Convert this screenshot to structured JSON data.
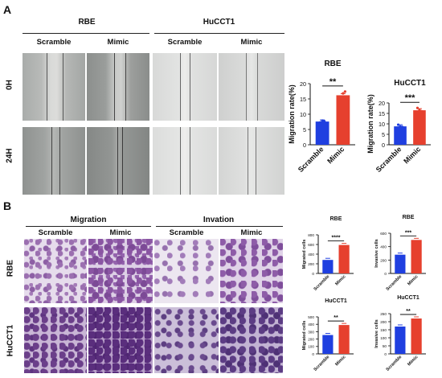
{
  "panelA": {
    "letter": "A",
    "groups": [
      "RBE",
      "HuCCT1"
    ],
    "cols": [
      "Scramble",
      "Mimic",
      "Scramble",
      "Mimic"
    ],
    "rows": [
      "0H",
      "24H"
    ]
  },
  "panelB": {
    "letter": "B",
    "groups": [
      "Migration",
      "Invation"
    ],
    "cols": [
      "Scramble",
      "Mimic",
      "Scramble",
      "Mimic"
    ],
    "rows": [
      "RBE",
      "HuCCT1"
    ]
  },
  "colors": {
    "scramble": "#1f3fe0",
    "mimic": "#e6402e"
  },
  "chart_data": [
    {
      "type": "bar",
      "title": "RBE",
      "categories": [
        "Scramble",
        "Mimic"
      ],
      "values": [
        7.6,
        16.2
      ],
      "points": [
        [
          7.3,
          7.9,
          7.7
        ],
        [
          15.2,
          16.8,
          17.4
        ]
      ],
      "ylabel": "Migration rate(%)",
      "ylim": [
        0,
        20
      ],
      "yticks": [
        "0",
        "5",
        "10",
        "15",
        "20"
      ],
      "significance": "**"
    },
    {
      "type": "bar",
      "title": "HuCCT1",
      "categories": [
        "Scramble",
        "Mimic"
      ],
      "values": [
        8.8,
        16.5
      ],
      "points": [
        [
          9.6,
          8.7,
          8.5
        ],
        [
          17.6,
          16.6,
          16.0
        ]
      ],
      "ylabel": "Migration rate(%)",
      "ylim": [
        0,
        20
      ],
      "yticks": [
        "0",
        "5",
        "10",
        "15",
        "20"
      ],
      "significance": "***"
    },
    {
      "type": "bar",
      "title": "RBE",
      "categories": [
        "Scramble",
        "Mimic"
      ],
      "values": [
        280,
        590
      ],
      "ylabel": "Migrated cells",
      "ylim": [
        0,
        800
      ],
      "yticks": [
        "0",
        "200",
        "400",
        "600",
        "800"
      ],
      "significance": "****"
    },
    {
      "type": "bar",
      "title": "RBE",
      "categories": [
        "Scramble",
        "Mimic"
      ],
      "values": [
        280,
        500
      ],
      "ylabel": "Invasive cells",
      "ylim": [
        0,
        600
      ],
      "yticks": [
        "0",
        "200",
        "400",
        "600"
      ],
      "significance": "***"
    },
    {
      "type": "bar",
      "title": "HuCCT1",
      "categories": [
        "Scramble",
        "Mimic"
      ],
      "values": [
        255,
        390
      ],
      "ylabel": "Migrated cells",
      "ylim": [
        0,
        500
      ],
      "yticks": [
        "0",
        "100",
        "200",
        "300",
        "400",
        "500"
      ],
      "significance": "**"
    },
    {
      "type": "bar",
      "title": "HuCCT1",
      "categories": [
        "Scramble",
        "Mimic"
      ],
      "values": [
        170,
        220
      ],
      "ylabel": "Invasive cells",
      "ylim": [
        0,
        250
      ],
      "yticks": [
        "0",
        "50",
        "100",
        "150",
        "200",
        "250"
      ],
      "significance": "**"
    }
  ]
}
